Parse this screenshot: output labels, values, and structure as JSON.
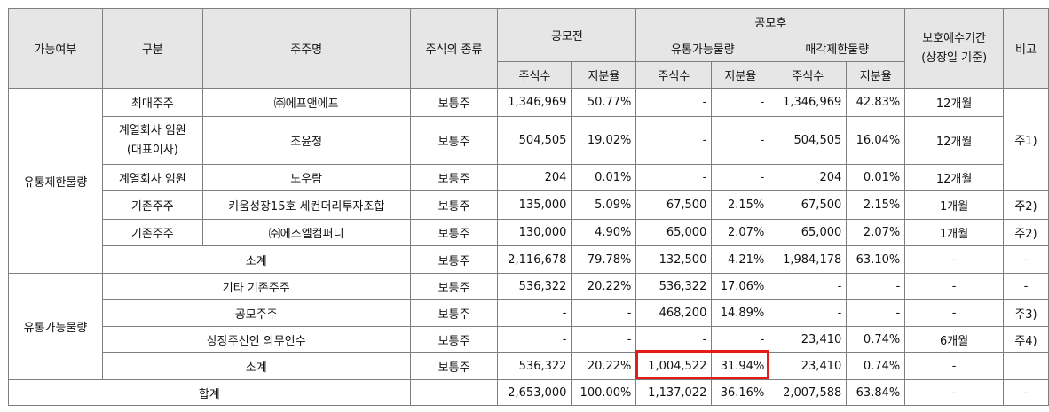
{
  "header": {
    "availability": "가능여부",
    "category": "구분",
    "shareholder": "주주명",
    "stock_type": "주식의 종류",
    "before_ipo": "공모전",
    "after_ipo": "공모후",
    "tradable": "유통가능물량",
    "restricted": "매각제한물량",
    "lockup_period": "보호예수기간\n(상장일 기준)",
    "remarks": "비고",
    "shares": "주식수",
    "ratio": "지분율"
  },
  "rows": [
    {
      "group": "유통제한물량",
      "category": "최대주주",
      "name": "㈜에프앤에프",
      "type": "보통주",
      "pre_shares": "1,346,969",
      "pre_ratio": "50.77%",
      "trade_shares": "-",
      "trade_ratio": "-",
      "restr_shares": "1,346,969",
      "restr_ratio": "42.83%",
      "period": "12개월",
      "note": "주1)"
    },
    {
      "category": "계열회사 임원\n(대표이사)",
      "name": "조윤정",
      "type": "보통주",
      "pre_shares": "504,505",
      "pre_ratio": "19.02%",
      "trade_shares": "-",
      "trade_ratio": "-",
      "restr_shares": "504,505",
      "restr_ratio": "16.04%",
      "period": "12개월"
    },
    {
      "category": "계열회사 임원",
      "name": "노우람",
      "type": "보통주",
      "pre_shares": "204",
      "pre_ratio": "0.01%",
      "trade_shares": "-",
      "trade_ratio": "-",
      "restr_shares": "204",
      "restr_ratio": "0.01%",
      "period": "12개월"
    },
    {
      "category": "기존주주",
      "name": "키움성장15호 세컨더리투자조합",
      "type": "보통주",
      "pre_shares": "135,000",
      "pre_ratio": "5.09%",
      "trade_shares": "67,500",
      "trade_ratio": "2.15%",
      "restr_shares": "67,500",
      "restr_ratio": "2.15%",
      "period": "1개월",
      "note": "주2)"
    },
    {
      "category": "기존주주",
      "name": "㈜에스엘컴퍼니",
      "type": "보통주",
      "pre_shares": "130,000",
      "pre_ratio": "4.90%",
      "trade_shares": "65,000",
      "trade_ratio": "2.07%",
      "restr_shares": "65,000",
      "restr_ratio": "2.07%",
      "period": "1개월",
      "note": "주2)"
    },
    {
      "category": "소계",
      "type": "보통주",
      "pre_shares": "2,116,678",
      "pre_ratio": "79.78%",
      "trade_shares": "132,500",
      "trade_ratio": "4.21%",
      "restr_shares": "1,984,178",
      "restr_ratio": "63.10%",
      "period": "-",
      "note": "-"
    },
    {
      "group": "유통가능물량",
      "category": "기타 기존주주",
      "type": "보통주",
      "pre_shares": "536,322",
      "pre_ratio": "20.22%",
      "trade_shares": "536,322",
      "trade_ratio": "17.06%",
      "restr_shares": "-",
      "restr_ratio": "-",
      "period": "-",
      "note": "-"
    },
    {
      "category": "공모주주",
      "type": "보통주",
      "pre_shares": "-",
      "pre_ratio": "-",
      "trade_shares": "468,200",
      "trade_ratio": "14.89%",
      "restr_shares": "-",
      "restr_ratio": "-",
      "period": "-",
      "note": "주3)"
    },
    {
      "category": "상장주선인 의무인수",
      "type": "보통주",
      "pre_shares": "-",
      "pre_ratio": "-",
      "trade_shares": "-",
      "trade_ratio": "-",
      "restr_shares": "23,410",
      "restr_ratio": "0.74%",
      "period": "6개월",
      "note": "주4)"
    },
    {
      "category": "소계",
      "type": "보통주",
      "pre_shares": "536,322",
      "pre_ratio": "20.22%",
      "trade_shares": "1,004,522",
      "trade_ratio": "31.94%",
      "restr_shares": "23,410",
      "restr_ratio": "0.74%",
      "period": "-",
      "note": ""
    },
    {
      "category": "합계",
      "type": "",
      "pre_shares": "2,653,000",
      "pre_ratio": "100.00%",
      "trade_shares": "1,137,022",
      "trade_ratio": "36.16%",
      "restr_shares": "2,007,588",
      "restr_ratio": "63.84%",
      "period": "-",
      "note": "-"
    }
  ],
  "highlight_color": "#e31b1b"
}
